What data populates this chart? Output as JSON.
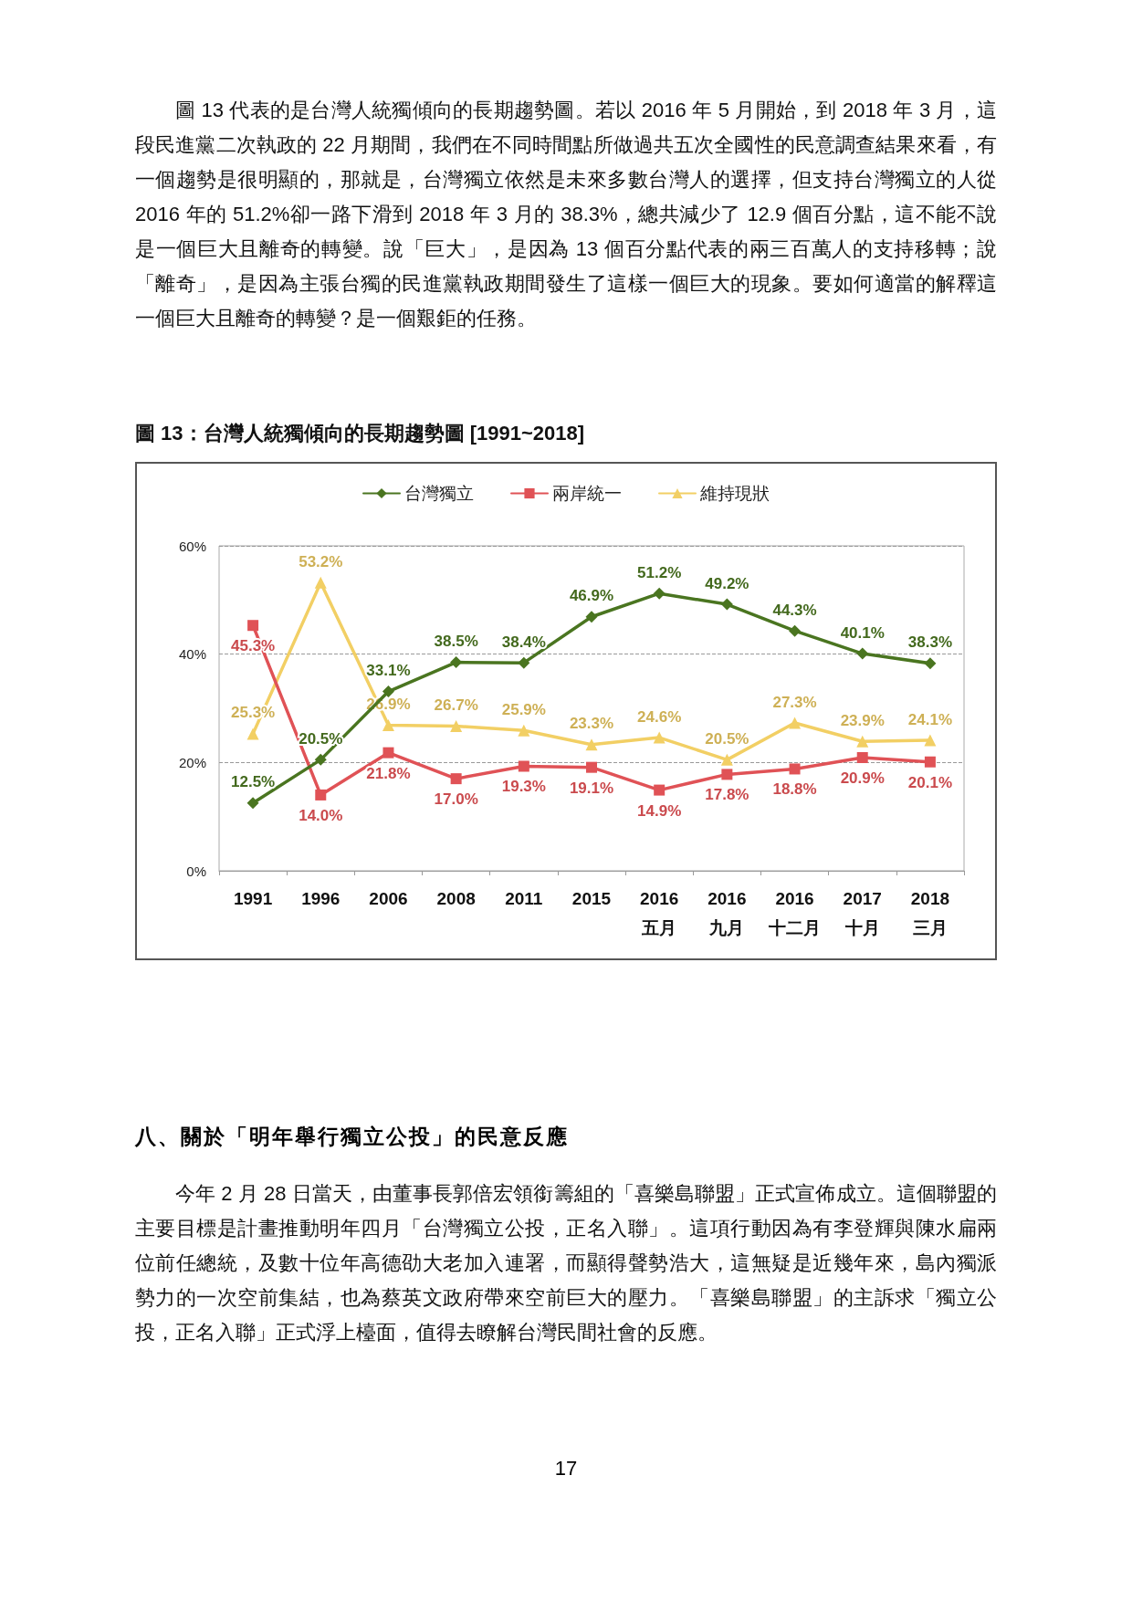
{
  "chart_data": {
    "type": "line",
    "title": "圖 13：台灣人統獨傾向的長期趨勢圖  [1991~2018]",
    "annotations": [
      "圖 13 代表的是台灣人統獨傾向的長期趨勢圖。若以 2016 年 5 月開始，到 2018 年 3 月，這段民進黨二次執政的 22 月期間，我們在不同時間點所做過共五次全國性的民意調查結果來看，有一個趨勢是很明顯的，那就是，台灣獨立依然是未來多數台灣人的選擇，但支持台灣獨立的人從 2016 年的 51.2%卻一路下滑到 2018 年 3 月的 38.3%，總共減少了 12.9 個百分點，這不能不說是一個巨大且離奇的轉變。說「巨大」，是因為 13 個百分點代表的兩三百萬人的支持移轉；說「離奇」，是因為主張台獨的民進黨執政期間發生了這樣一個巨大的現象。要如何適當的解釋這一個巨大且離奇的轉變？是一個艱鉅的任務。",
      "八、關於「明年舉行獨立公投」的民意反應",
      "今年 2 月 28 日當天，由董事長郭倍宏領銜籌組的「喜樂島聯盟」正式宣佈成立。這個聯盟的主要目標是計畫推動明年四月「台灣獨立公投，正名入聯」。這項行動因為有李登輝與陳水扁兩位前任總統，及數十位年高德劭大老加入連署，而顯得聲勢浩大，這無疑是近幾年來，島內獨派勢力的一次空前集結，也為蔡英文政府帶來空前巨大的壓力。「喜樂島聯盟」的主訴求「獨立公投，正名入聯」正式浮上檯面，值得去瞭解台灣民間社會的反應。",
      "17"
    ],
    "categories": [
      "1991",
      "1996",
      "2006",
      "2008",
      "2011",
      "2015",
      "2016\n五月",
      "2016\n九月",
      "2016\n十二月",
      "2017\n十月",
      "2018\n三月"
    ],
    "series": [
      {
        "name": "台灣獨立",
        "color": "#4a7520",
        "marker": "diamond",
        "values": [
          12.5,
          20.5,
          33.1,
          38.5,
          38.4,
          46.9,
          51.2,
          49.2,
          44.3,
          40.1,
          38.3
        ],
        "value_labels": [
          "12.5%",
          "20.5%",
          "33.1%",
          "38.5%",
          "38.4%",
          "46.9%",
          "51.2%",
          "49.2%",
          "44.3%",
          "40.1%",
          "38.3%"
        ]
      },
      {
        "name": "兩岸統一",
        "color": "#e05256",
        "marker": "square",
        "values": [
          45.3,
          14.0,
          21.8,
          17.0,
          19.3,
          19.1,
          14.9,
          17.8,
          18.8,
          20.9,
          20.1
        ],
        "value_labels": [
          "45.3%",
          "14.0%",
          "21.8%",
          "17.0%",
          "19.3%",
          "19.1%",
          "14.9%",
          "17.8%",
          "18.8%",
          "20.9%",
          "20.1%"
        ]
      },
      {
        "name": "維持現狀",
        "color": "#f2cf64",
        "marker": "triangle",
        "values": [
          25.3,
          53.2,
          26.9,
          26.7,
          25.9,
          23.3,
          24.6,
          20.5,
          27.3,
          23.9,
          24.1
        ],
        "value_labels": [
          "25.3%",
          "53.2%",
          "26.9%",
          "26.7%",
          "25.9%",
          "23.3%",
          "24.6%",
          "20.5%",
          "27.3%",
          "23.9%",
          "24.1%"
        ]
      }
    ],
    "ylim": [
      0,
      60
    ],
    "yticks": [
      {
        "value": 0,
        "label": "0%"
      },
      {
        "value": 20,
        "label": "20%"
      },
      {
        "value": 40,
        "label": "40%"
      },
      {
        "value": 60,
        "label": "60%"
      }
    ],
    "grid": "y",
    "legend": "top",
    "line_style": "solid"
  }
}
